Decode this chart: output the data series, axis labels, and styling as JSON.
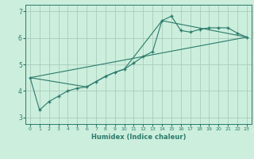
{
  "xlabel": "Humidex (Indice chaleur)",
  "background_color": "#cceedd",
  "grid_color": "#aaccbb",
  "line_color": "#2a7a6a",
  "xlim": [
    -0.5,
    23.5
  ],
  "ylim": [
    2.75,
    7.25
  ],
  "yticks": [
    3,
    4,
    5,
    6,
    7
  ],
  "xticks": [
    0,
    1,
    2,
    3,
    4,
    5,
    6,
    7,
    8,
    9,
    10,
    11,
    12,
    13,
    14,
    15,
    16,
    17,
    18,
    19,
    20,
    21,
    22,
    23
  ],
  "series1_x": [
    0,
    1,
    2,
    3,
    4,
    5,
    6,
    7,
    8,
    9,
    10,
    11,
    12,
    13,
    14,
    15,
    16,
    17,
    18,
    19,
    20,
    21,
    22,
    23
  ],
  "series1_y": [
    4.5,
    3.28,
    3.6,
    3.8,
    4.0,
    4.1,
    4.15,
    4.35,
    4.55,
    4.7,
    4.82,
    5.05,
    5.3,
    5.48,
    6.65,
    6.82,
    6.28,
    6.22,
    6.32,
    6.38,
    6.38,
    6.38,
    6.18,
    6.03
  ],
  "series2_x": [
    0,
    6,
    7,
    8,
    9,
    10,
    14,
    23
  ],
  "series2_y": [
    4.5,
    4.15,
    4.35,
    4.55,
    4.7,
    4.82,
    6.65,
    6.03
  ],
  "series3_x": [
    0,
    23
  ],
  "series3_y": [
    4.5,
    6.03
  ]
}
